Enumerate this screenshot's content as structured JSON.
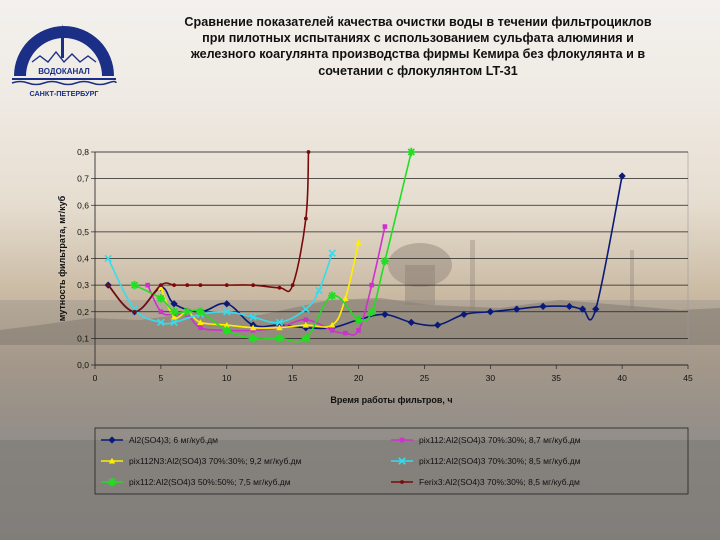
{
  "logo": {
    "name": "ВОДОКАНАЛ",
    "city": "САНКТ-ПЕТЕРБУРГ",
    "colors": {
      "primary": "#1b2f86",
      "accent": "#c8c8c8"
    }
  },
  "title_lines": [
    "Сравнение показателей качества очистки воды в течении фильтроциклов",
    "при пилотных испытаниях с использованием сульфата алюминия и",
    "железного коагулянта производства фирмы Кемира без флокулянта и в",
    "сочетании с флокулянтом LT-31"
  ],
  "chart_data": {
    "type": "line",
    "title": "Сравнение показателей качества очистки воды в течении фильтроциклов при пилотных испытаниях с использованием сульфата алюминия и железного коагулянта производства фирмы Кемира без флокулянта и в сочетании с флокулянтом LT-31",
    "xlabel": "Время работы фильтров, ч",
    "ylabel": "мутность фильтрата, мг/куб",
    "xlim": [
      0,
      45
    ],
    "ylim": [
      0,
      0.8
    ],
    "x_ticks": [
      "0",
      "5",
      "10",
      "15",
      "20",
      "25",
      "30",
      "35",
      "40",
      "45"
    ],
    "y_ticks": [
      "0,0",
      "0,1",
      "0,2",
      "0,3",
      "0,4",
      "0,5",
      "0,6",
      "0,7",
      "0,8"
    ],
    "grid": "horizontal",
    "legend_position": "bottom",
    "series": [
      {
        "name": "Al2(SO4)3; 6 мг/куб.дм",
        "color": "#0a1a78",
        "marker": "diamond",
        "points": [
          [
            1,
            0.3
          ],
          [
            3,
            0.2
          ],
          [
            5,
            0.29
          ],
          [
            6,
            0.23
          ],
          [
            8,
            0.2
          ],
          [
            10,
            0.23
          ],
          [
            12,
            0.15
          ],
          [
            14,
            0.15
          ],
          [
            16,
            0.14
          ],
          [
            18,
            0.14
          ],
          [
            20,
            0.17
          ],
          [
            22,
            0.19
          ],
          [
            24,
            0.16
          ],
          [
            26,
            0.15
          ],
          [
            28,
            0.19
          ],
          [
            30,
            0.2
          ],
          [
            32,
            0.21
          ],
          [
            34,
            0.22
          ],
          [
            36,
            0.22
          ],
          [
            37,
            0.21
          ],
          [
            38,
            0.21
          ],
          [
            40,
            0.71
          ]
        ]
      },
      {
        "name": "pix112:Al2(SO4)3 70%:30%; 8,7 мг/куб.дм",
        "color": "#cc33cc",
        "marker": "square",
        "points": [
          [
            4,
            0.3
          ],
          [
            5,
            0.2
          ],
          [
            6,
            0.19
          ],
          [
            7,
            0.19
          ],
          [
            8,
            0.14
          ],
          [
            10,
            0.13
          ],
          [
            12,
            0.13
          ],
          [
            14,
            0.14
          ],
          [
            16,
            0.17
          ],
          [
            18,
            0.13
          ],
          [
            19,
            0.12
          ],
          [
            20,
            0.13
          ],
          [
            21,
            0.3
          ],
          [
            22,
            0.52
          ]
        ]
      },
      {
        "name": "pix112N3:Al2(SO4)3 70%:30%; 9,2 мг/куб.дм",
        "color": "#ffee00",
        "marker": "triangle",
        "points": [
          [
            5,
            0.29
          ],
          [
            6,
            0.18
          ],
          [
            7,
            0.2
          ],
          [
            8,
            0.16
          ],
          [
            10,
            0.15
          ],
          [
            12,
            0.14
          ],
          [
            14,
            0.14
          ],
          [
            16,
            0.15
          ],
          [
            18,
            0.15
          ],
          [
            19,
            0.25
          ],
          [
            20,
            0.46
          ]
        ]
      },
      {
        "name": "pix112:Al2(SO4)3 70%:30%; 8,5 мг/куб.дм",
        "color": "#33ddee",
        "marker": "x",
        "points": [
          [
            1,
            0.4
          ],
          [
            3,
            0.21
          ],
          [
            5,
            0.16
          ],
          [
            6,
            0.16
          ],
          [
            8,
            0.19
          ],
          [
            10,
            0.2
          ],
          [
            12,
            0.18
          ],
          [
            14,
            0.16
          ],
          [
            16,
            0.21
          ],
          [
            17,
            0.28
          ],
          [
            18,
            0.42
          ]
        ]
      },
      {
        "name": "pix112:Al2(SO4)3 50%:50%; 7,5 мг/куб.дм",
        "color": "#22dd22",
        "marker": "star",
        "points": [
          [
            3,
            0.3
          ],
          [
            5,
            0.25
          ],
          [
            6,
            0.2
          ],
          [
            7,
            0.2
          ],
          [
            8,
            0.2
          ],
          [
            10,
            0.13
          ],
          [
            12,
            0.1
          ],
          [
            14,
            0.1
          ],
          [
            16,
            0.1
          ],
          [
            18,
            0.26
          ],
          [
            20,
            0.17
          ],
          [
            21,
            0.2
          ],
          [
            22,
            0.39
          ],
          [
            24,
            0.8
          ]
        ]
      },
      {
        "name": "Ferix3:Al2(SO4)3 70%:30%; 8,5 мг/куб.дм",
        "color": "#7a0a0a",
        "marker": "circle",
        "points": [
          [
            1,
            0.3
          ],
          [
            3,
            0.2
          ],
          [
            5,
            0.3
          ],
          [
            6,
            0.3
          ],
          [
            7,
            0.3
          ],
          [
            8,
            0.3
          ],
          [
            10,
            0.3
          ],
          [
            12,
            0.3
          ],
          [
            14,
            0.29
          ],
          [
            15,
            0.3
          ],
          [
            16,
            0.55
          ],
          [
            16.2,
            0.8
          ]
        ]
      }
    ]
  }
}
